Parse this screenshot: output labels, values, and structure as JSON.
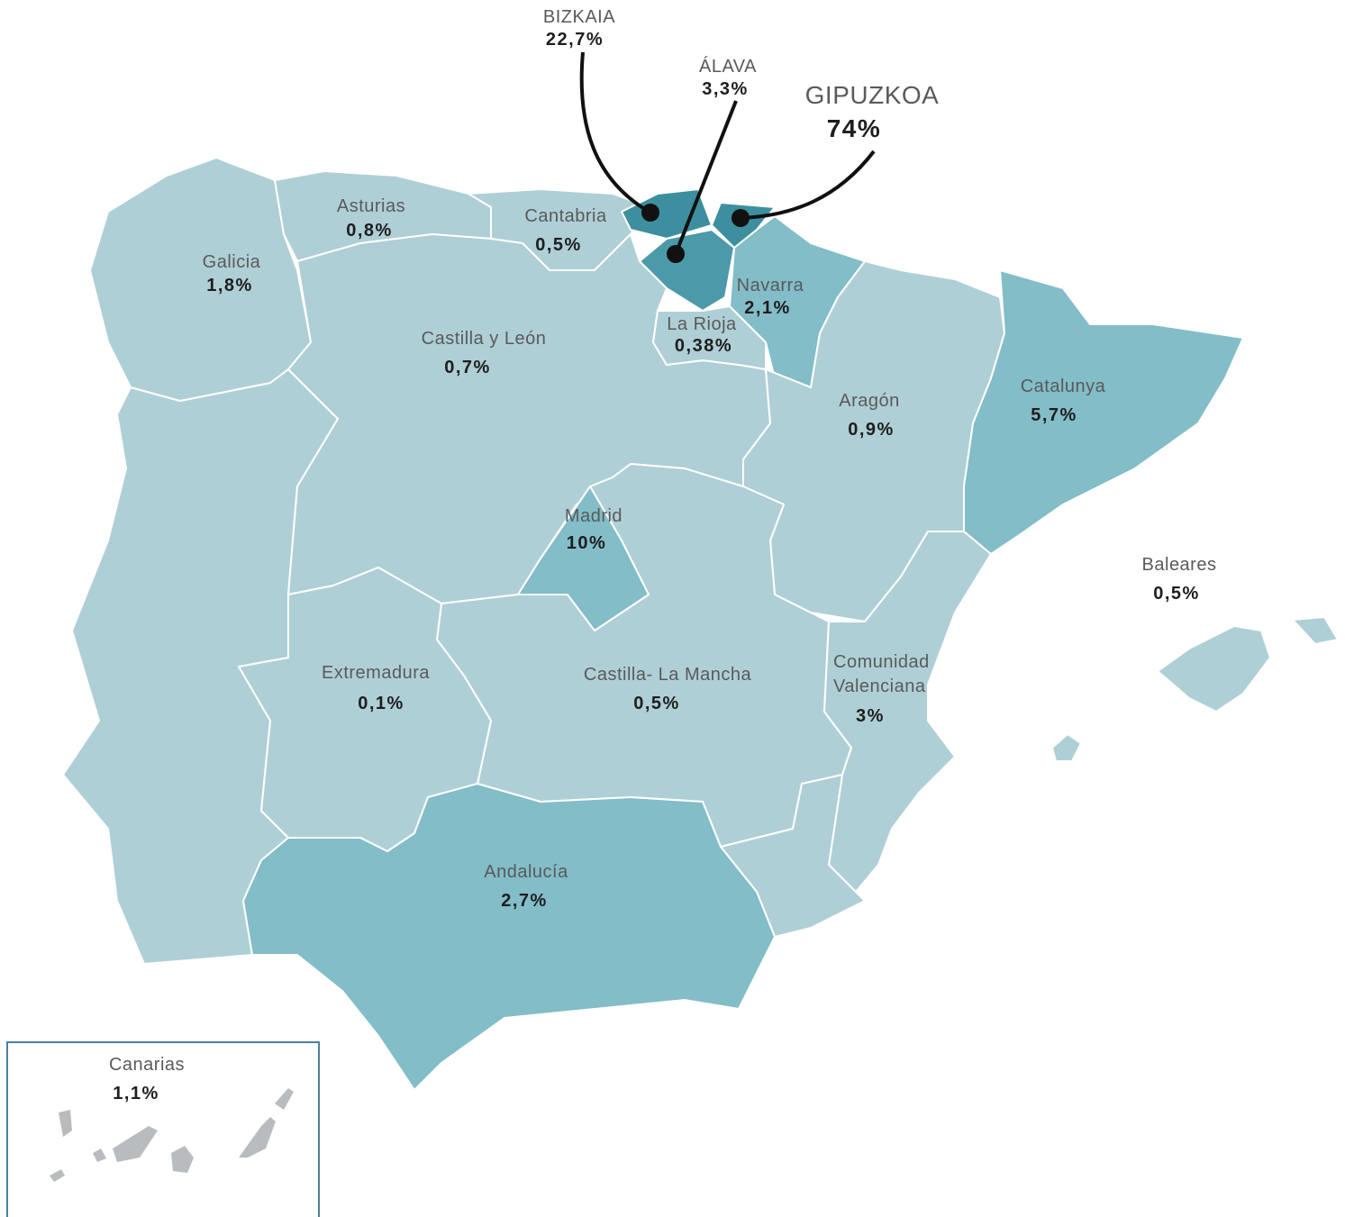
{
  "regions": [
    {
      "name": "Galicia",
      "value": "1,8%"
    },
    {
      "name": "Asturias",
      "value": "0,8%"
    },
    {
      "name": "Cantabria",
      "value": "0,5%"
    },
    {
      "name": "Navarra",
      "value": "2,1%"
    },
    {
      "name": "La Rioja",
      "value": "0,38%"
    },
    {
      "name": "Castilla y León",
      "value": "0,7%"
    },
    {
      "name": "Aragón",
      "value": "0,9%"
    },
    {
      "name": "Catalunya",
      "value": "5,7%"
    },
    {
      "name": "Madrid",
      "value": "10%"
    },
    {
      "name": "Baleares",
      "value": "0,5%"
    },
    {
      "name": "Extremadura",
      "value": "0,1%"
    },
    {
      "name": "Castilla- La Mancha",
      "value": "0,5%"
    },
    {
      "name": "Comunidad Valenciana",
      "value": "3%"
    },
    {
      "name": "Andalucía",
      "value": "2,7%"
    },
    {
      "name": "Canarias",
      "value": "1,1%"
    }
  ],
  "callouts": [
    {
      "name": "BIZKAIA",
      "value": "22,7%"
    },
    {
      "name": "ÁLAVA",
      "value": "3,3%"
    },
    {
      "name": "GIPUZKOA",
      "value": "74%"
    }
  ]
}
